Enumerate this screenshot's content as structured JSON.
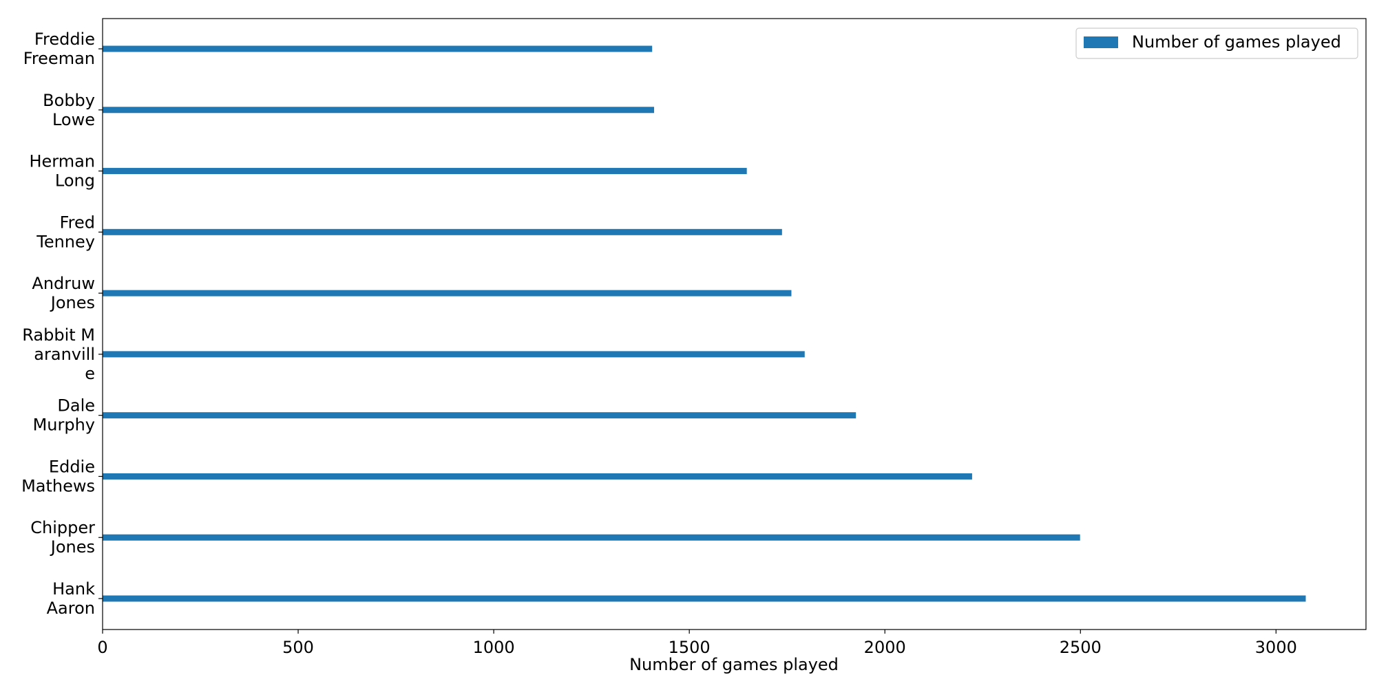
{
  "chart_data": {
    "type": "bar",
    "orientation": "horizontal",
    "title": "",
    "xlabel": "Number of games played",
    "ylabel": "",
    "categories": [
      "Hank Aaron",
      "Chipper Jones",
      "Eddie Mathews",
      "Dale Murphy",
      "Rabbit Maranville",
      "Andruw Jones",
      "Fred Tenney",
      "Herman Long",
      "Bobby Lowe",
      "Freddie Freeman"
    ],
    "category_label_lines": [
      [
        "Hank",
        "Aaron"
      ],
      [
        "Chipper",
        "Jones"
      ],
      [
        "Eddie",
        "Mathews"
      ],
      [
        "Dale",
        "Murphy"
      ],
      [
        "Rabbit M",
        "aranvill",
        "e"
      ],
      [
        "Andruw",
        "Jones"
      ],
      [
        "Fred",
        "Tenney"
      ],
      [
        "Herman",
        "Long"
      ],
      [
        "Bobby",
        "Lowe"
      ],
      [
        "Freddie",
        "Freeman"
      ]
    ],
    "series": [
      {
        "name": "Number of games played",
        "color": "#1f77b4",
        "values": [
          3076,
          2499,
          2223,
          1926,
          1795,
          1761,
          1737,
          1647,
          1410,
          1405
        ]
      }
    ],
    "xlim": [
      0,
      3230
    ],
    "xticks": [
      0,
      500,
      1000,
      1500,
      2000,
      2500,
      3000
    ],
    "grid": false,
    "legend_position": "top-right"
  }
}
